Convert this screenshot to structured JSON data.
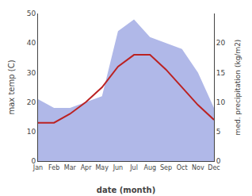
{
  "chart_data": {
    "type": "line",
    "categories": [
      "Jan",
      "Feb",
      "Mar",
      "Apr",
      "May",
      "Jun",
      "Jul",
      "Aug",
      "Sep",
      "Oct",
      "Nov",
      "Dec"
    ],
    "xlabel": "date (month)",
    "ylabel": "max temp (C)",
    "y2label": "med. precipitation (kg/m2)",
    "ylim": [
      0,
      50
    ],
    "yticks": [
      0,
      10,
      20,
      30,
      40,
      50
    ],
    "y2lim": [
      0,
      25
    ],
    "y2ticks": [
      0,
      5,
      10,
      15,
      20
    ],
    "grid": false,
    "series": [
      {
        "type": "area",
        "axis": "y2",
        "color": "#b0b8e8",
        "values": [
          10.5,
          9,
          9,
          10,
          11,
          22,
          24,
          21,
          20,
          19,
          15,
          9
        ]
      },
      {
        "type": "line",
        "color": "#bb2222",
        "values": [
          13,
          13,
          16,
          20,
          25,
          32,
          36,
          36,
          31,
          25,
          19,
          14
        ]
      }
    ]
  }
}
